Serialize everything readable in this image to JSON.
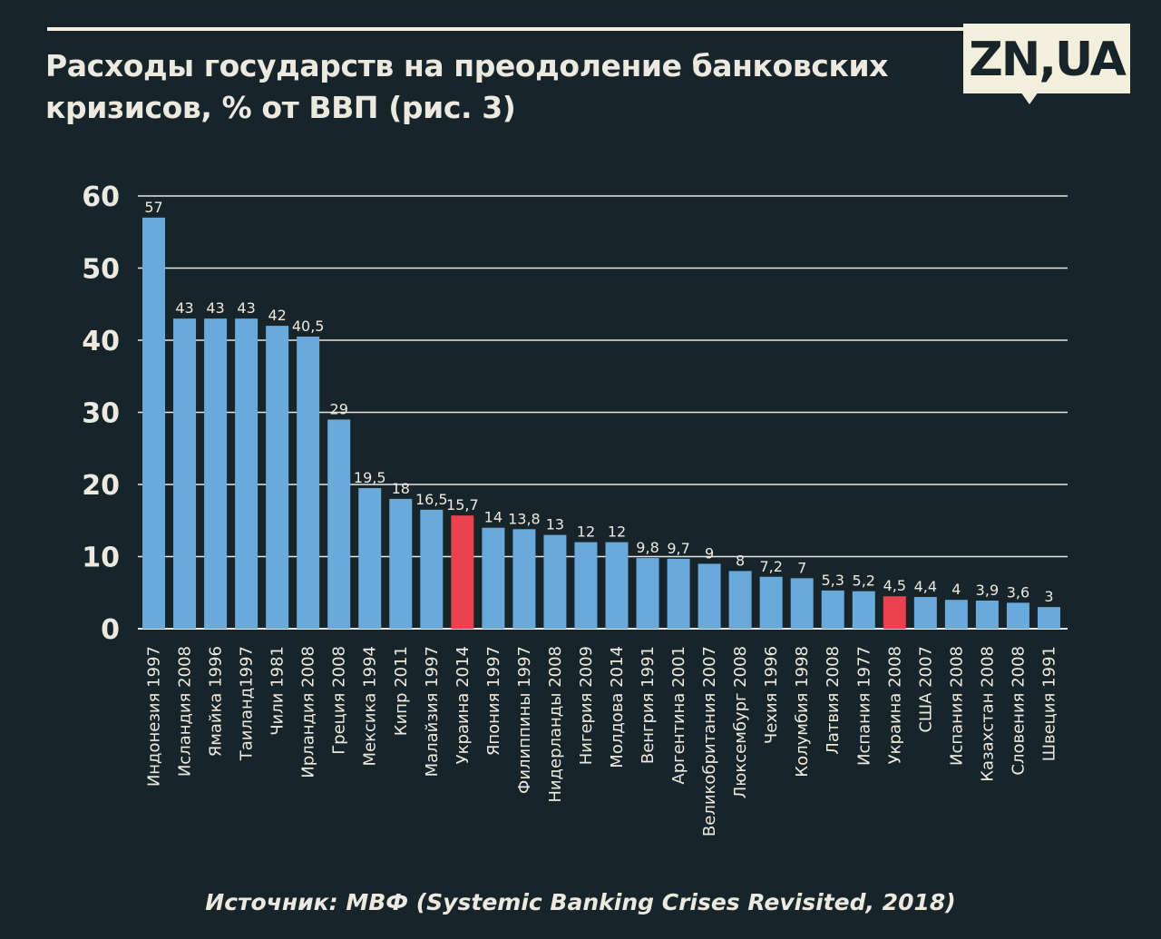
{
  "title_lines": [
    "Расходы государств на преодоление банковских",
    "кризисов, % от ВВП (рис. 3)"
  ],
  "logo": "ZN,UA",
  "source": "Источник: МВФ (Systemic Banking Crises Revisited, 2018)",
  "colors": {
    "background": "#17252b",
    "bar": "#6aaadb",
    "highlight": "#e8434c",
    "text": "#eceae0",
    "grid": "#e6e6e6"
  },
  "chart_data": {
    "type": "bar",
    "categories": [
      "Индонезия 1997",
      "Исландия 2008",
      "Ямайка 1996",
      "Таиланд1997",
      "Чили 1981",
      "Ирландия 2008",
      "Греция 2008",
      "Мексика 1994",
      "Кипр 2011",
      "Малайзия 1997",
      "Украина 2014",
      "Япония 1997",
      "Филиппины 1997",
      "Нидерланды 2008",
      "Нигерия 2009",
      "Молдова 2014",
      "Венгрия 1991",
      "Аргентина 2001",
      "Великобритания 2007",
      "Люксембург 2008",
      "Чехия 1996",
      "Колумбия 1998",
      "Латвия 2008",
      "Испания 1977",
      "Украина 2008",
      "США 2007",
      "Испания 2008",
      "Казахстан 2008",
      "Словения 2008",
      "Швеция 1991"
    ],
    "values": [
      57,
      43,
      43,
      43,
      42,
      40.5,
      29,
      19.5,
      18,
      16.5,
      15.7,
      14,
      13.8,
      13,
      12,
      12,
      9.8,
      9.7,
      9,
      8,
      7.2,
      7,
      5.3,
      5.2,
      4.5,
      4.4,
      4,
      3.9,
      3.6,
      3
    ],
    "value_labels": [
      "57",
      "43",
      "43",
      "43",
      "42",
      "40,5",
      "29",
      "19,5",
      "18",
      "16,5",
      "15,7",
      "14",
      "13,8",
      "13",
      "12",
      "12",
      "9,8",
      "9,7",
      "9",
      "8",
      "7,2",
      "7",
      "5,3",
      "5,2",
      "4,5",
      "4,4",
      "4",
      "3,9",
      "3,6",
      "3"
    ],
    "highlighted": [
      "Украина 2014",
      "Украина 2008"
    ],
    "y_ticks": [
      "0",
      "10",
      "20",
      "30",
      "40",
      "50",
      "60"
    ],
    "ylim": [
      0,
      60
    ],
    "grid": true,
    "title": "Расходы государств на преодоление банковских кризисов, % от ВВП (рис. 3)",
    "xlabel": "",
    "ylabel": ""
  }
}
